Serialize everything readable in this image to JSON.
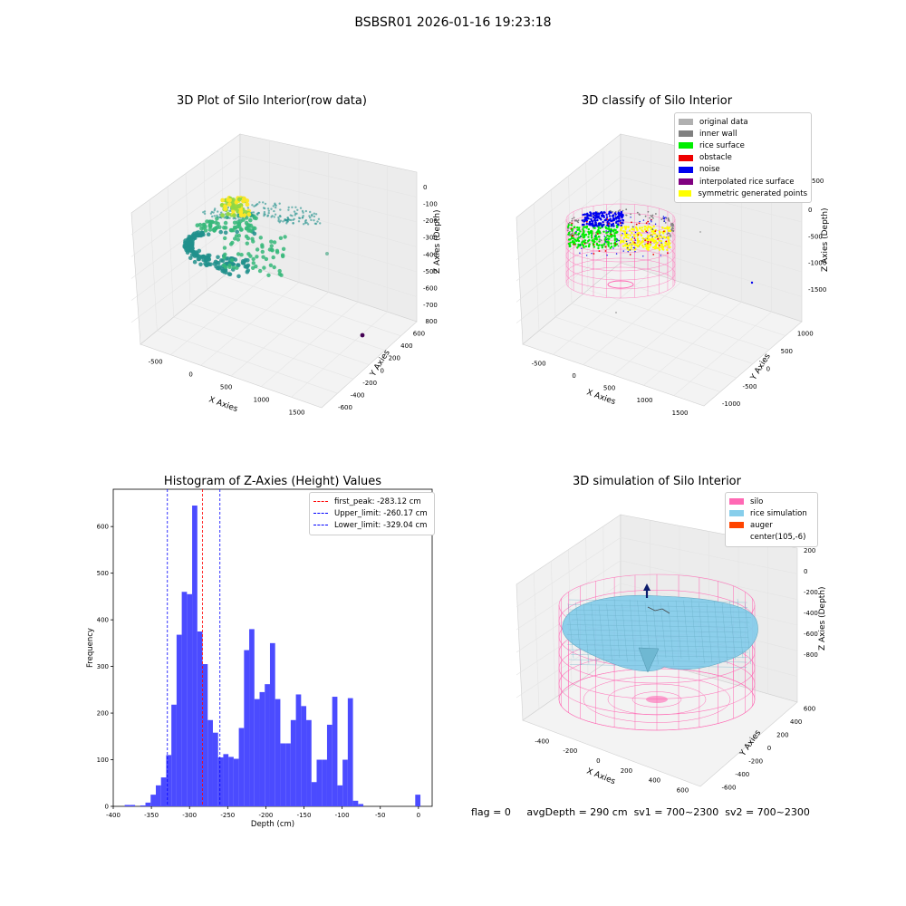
{
  "suptitle": "BSBSR01 2026-01-16 19:23:18",
  "panels": {
    "p1": {
      "title": "3D Plot of Silo Interior(row data)",
      "x_label": "X Axies",
      "y_label": "Y Axies",
      "z_label": "Z Axies (Depth)",
      "x_ticks": [
        "-500",
        "0",
        "500",
        "1000",
        "1500"
      ],
      "y_ticks": [
        "-600",
        "-400",
        "-200",
        "0",
        "200",
        "400",
        "600",
        "800"
      ],
      "z_ticks": [
        "0",
        "-100",
        "-200",
        "-300",
        "-400",
        "-500",
        "-600",
        "-700"
      ],
      "colormap": [
        "#440154",
        "#31688e",
        "#21918c",
        "#35b779",
        "#90d743",
        "#fde725"
      ]
    },
    "p2": {
      "title": "3D classify of Silo Interior",
      "x_label": "X Axies",
      "y_label": "Y Axies",
      "z_label": "Z Axies (Depth)",
      "x_ticks": [
        "-500",
        "0",
        "500",
        "1000",
        "1500"
      ],
      "y_ticks": [
        "-1000",
        "-500",
        "0",
        "500",
        "1000"
      ],
      "z_ticks": [
        "0",
        "-500",
        "-1000",
        "-1500"
      ],
      "z_top_tick": "500",
      "legend": [
        {
          "label": "original data",
          "color": "#b0b0b0"
        },
        {
          "label": "inner wall",
          "color": "#808080"
        },
        {
          "label": "rice surface",
          "color": "#00ee00"
        },
        {
          "label": "obstacle",
          "color": "#ee0000"
        },
        {
          "label": "noise",
          "color": "#0000ee"
        },
        {
          "label": "interpolated rice surface",
          "color": "#800080"
        },
        {
          "label": "symmetric generated points",
          "color": "#ffff00"
        }
      ],
      "silo_color": "#ff69b4"
    },
    "p3": {
      "title": "Histogram of Z-Axies (Height) Values",
      "legend": [
        {
          "label": "first_peak: -283.12 cm",
          "color": "#ff0000"
        },
        {
          "label": "Upper_limit: -260.17 cm",
          "color": "#0000ff"
        },
        {
          "label": "Lower_limit: -329.04 cm",
          "color": "#0000ff"
        }
      ]
    },
    "p4": {
      "title": "3D simulation of Silo Interior",
      "x_label": "X Axies",
      "y_label": "Y Axies",
      "z_label": "Z Axies (Depth)",
      "x_ticks": [
        "-400",
        "-200",
        "0",
        "200",
        "400",
        "600"
      ],
      "y_ticks": [
        "-600",
        "-400",
        "-200",
        "0",
        "200",
        "400",
        "600"
      ],
      "z_ticks": [
        "200",
        "0",
        "-200",
        "-400",
        "-600",
        "-800"
      ],
      "legend": [
        {
          "label": "silo",
          "color": "#ff69b4"
        },
        {
          "label": "rice simulation",
          "color": "#87ceeb"
        },
        {
          "label": "auger",
          "color": "#ff4500"
        },
        {
          "label": "center(105,-6)",
          "color": ""
        }
      ]
    }
  },
  "footer": {
    "flag": "flag = 0",
    "avg_depth": "avgDepth = 290 cm",
    "sv1": "sv1 = 700~2300",
    "sv2": "sv2 = 700~2300"
  },
  "chart_data": [
    {
      "type": "scatter",
      "title": "3D Plot of Silo Interior(row data)",
      "xlabel": "X Axies",
      "ylabel": "Y Axies",
      "zlabel": "Z Axies (Depth)",
      "xlim": [
        -600,
        1700
      ],
      "ylim": [
        -700,
        850
      ],
      "zlim": [
        -720,
        30
      ]
    },
    {
      "type": "scatter",
      "title": "3D classify of Silo Interior",
      "xlabel": "X Axies",
      "ylabel": "Y Axies",
      "zlabel": "Z Axies (Depth)",
      "series": [
        {
          "name": "original data"
        },
        {
          "name": "inner wall"
        },
        {
          "name": "rice surface"
        },
        {
          "name": "obstacle"
        },
        {
          "name": "noise"
        },
        {
          "name": "interpolated rice surface"
        },
        {
          "name": "symmetric generated points"
        }
      ]
    },
    {
      "type": "bar",
      "title": "Histogram of Z-Axies (Height) Values",
      "xlabel": "Depth (cm)",
      "ylabel": "Frequency",
      "xlim": [
        -400,
        18
      ],
      "ylim": [
        0,
        680
      ],
      "x_ticks": [
        -400,
        -350,
        -300,
        -250,
        -200,
        -150,
        -100,
        -50,
        0
      ],
      "y_ticks": [
        0,
        100,
        200,
        300,
        400,
        500,
        600
      ],
      "bin_width": 6.8,
      "bin_starts": [
        -385,
        -378.2,
        -371.4,
        -364.6,
        -357.8,
        -351,
        -344.2,
        -337.4,
        -330.6,
        -323.8,
        -317,
        -310.2,
        -303.4,
        -296.6,
        -289.8,
        -283,
        -276.2,
        -269.4,
        -262.6,
        -255.8,
        -249,
        -242.2,
        -235.4,
        -228.6,
        -221.8,
        -215,
        -208.2,
        -201.4,
        -194.6,
        -187.8,
        -181,
        -174.2,
        -167.4,
        -160.6,
        -153.8,
        -147,
        -140.2,
        -133.4,
        -126.6,
        -119.8,
        -113,
        -106.2,
        -99.4,
        -92.6,
        -85.8,
        -79,
        -72.2,
        -65.4,
        -58.6,
        -51.8,
        -45,
        -38.2,
        -31.4,
        -24.6,
        -17.8,
        -11,
        -4.2
      ],
      "values": [
        3,
        3,
        0,
        2,
        8,
        25,
        45,
        62,
        110,
        218,
        368,
        460,
        455,
        645,
        375,
        305,
        185,
        158,
        105,
        112,
        106,
        102,
        168,
        335,
        380,
        230,
        245,
        262,
        350,
        230,
        135,
        135,
        185,
        240,
        215,
        185,
        52,
        100,
        100,
        175,
        235,
        45,
        100,
        232,
        12,
        5,
        0,
        0,
        0,
        0,
        0,
        0,
        0,
        0,
        0,
        0,
        25
      ],
      "vlines": [
        {
          "name": "first_peak: -283.12 cm",
          "x": -283.12,
          "color": "#ff0000"
        },
        {
          "name": "Upper_limit: -260.17 cm",
          "x": -260.17,
          "color": "#0000ff"
        },
        {
          "name": "Lower_limit: -329.04 cm",
          "x": -329.04,
          "color": "#0000ff"
        }
      ],
      "bar_color": "#4b4bff"
    },
    {
      "type": "surface",
      "title": "3D simulation of Silo Interior",
      "xlabel": "X Axies",
      "ylabel": "Y Axies",
      "zlabel": "Z Axies (Depth)",
      "series": [
        {
          "name": "silo"
        },
        {
          "name": "rice simulation"
        },
        {
          "name": "auger"
        },
        {
          "name": "center(105,-6)"
        }
      ]
    }
  ]
}
